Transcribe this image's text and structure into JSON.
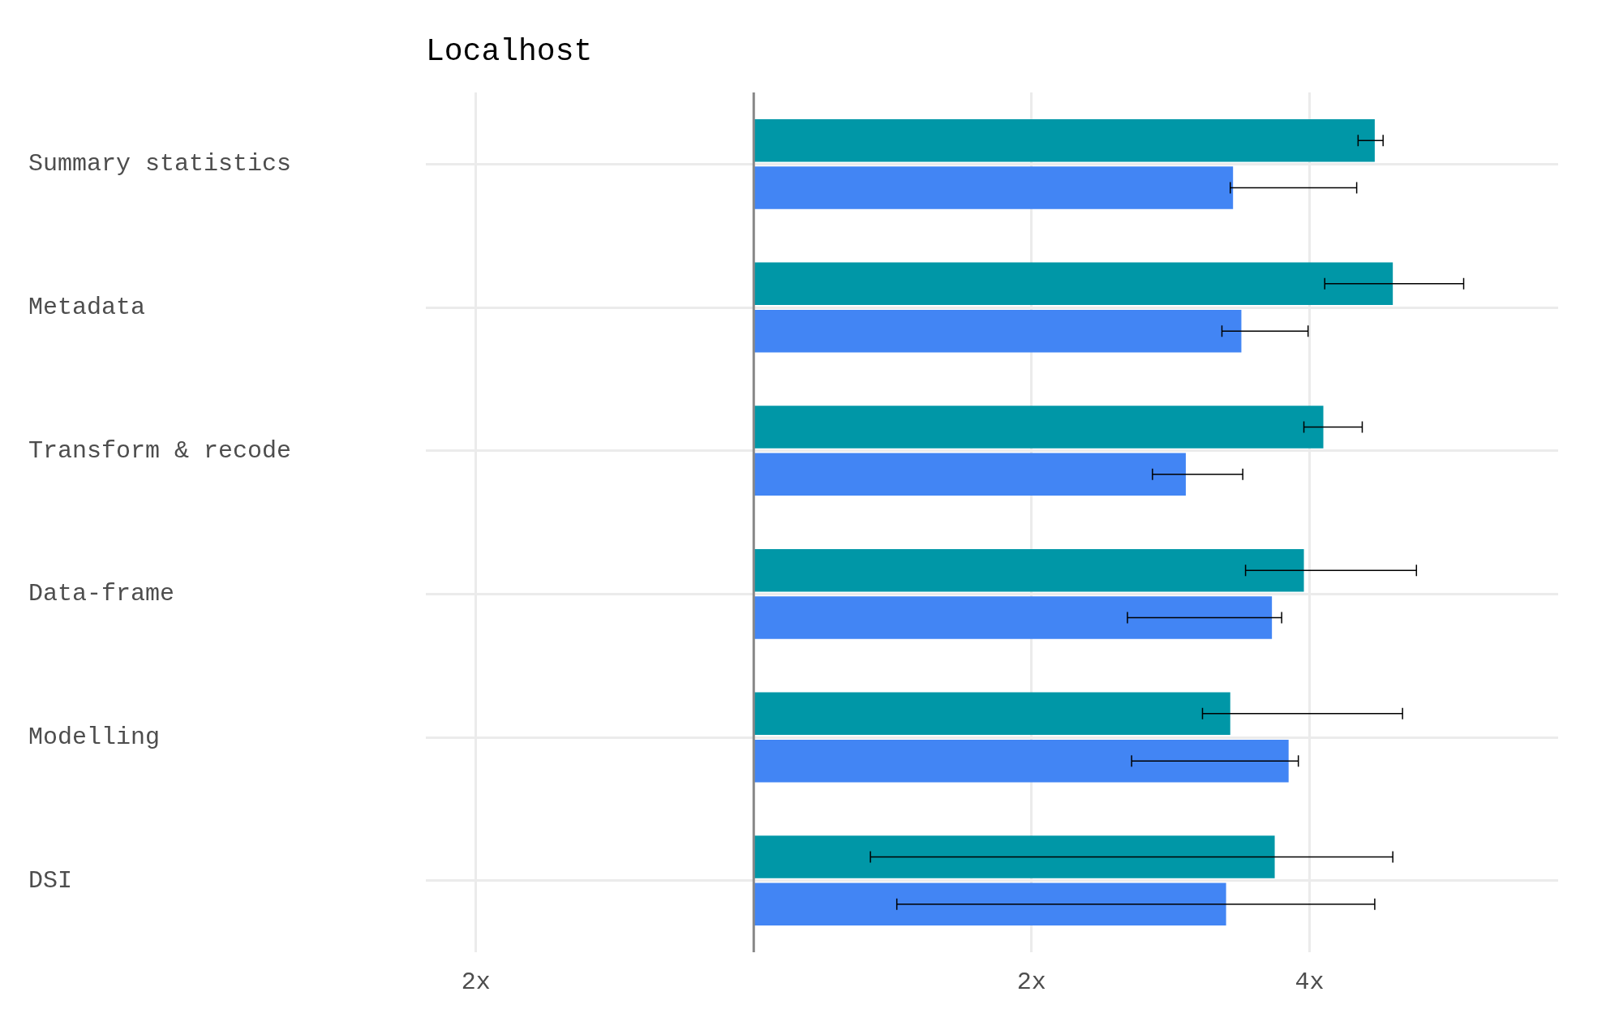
{
  "chart_data": {
    "type": "bar",
    "title": "Localhost",
    "orientation": "horizontal",
    "categories": [
      "Summary statistics",
      "Metadata",
      "Transform & recode",
      "Data-frame",
      "Modelling",
      "DSI"
    ],
    "series": [
      {
        "color": "#0097a7",
        "values": [
          4.47,
          4.6,
          4.1,
          3.96,
          3.43,
          3.75
        ],
        "errors": [
          [
            4.35,
            4.53
          ],
          [
            4.11,
            5.11
          ],
          [
            3.96,
            4.38
          ],
          [
            3.54,
            4.77
          ],
          [
            3.23,
            4.67
          ],
          [
            0.84,
            4.6
          ]
        ]
      },
      {
        "color": "#4285f4",
        "values": [
          3.45,
          3.51,
          3.11,
          3.73,
          3.85,
          3.4
        ],
        "errors": [
          [
            3.43,
            4.34
          ],
          [
            3.37,
            3.99
          ],
          [
            2.87,
            3.52
          ],
          [
            2.69,
            3.8
          ],
          [
            2.72,
            3.92
          ],
          [
            1.03,
            4.47
          ]
        ]
      }
    ],
    "xlim": [
      -2.36,
      5.79
    ],
    "xticks": [
      {
        "value": -2,
        "label": "2x"
      },
      {
        "value": 0,
        "label": null
      },
      {
        "value": 2,
        "label": "2x"
      },
      {
        "value": 4,
        "label": "4x"
      }
    ],
    "ref_lines": [
      {
        "axis": "x",
        "value": 0,
        "color": "#888888"
      }
    ],
    "grid": true
  }
}
